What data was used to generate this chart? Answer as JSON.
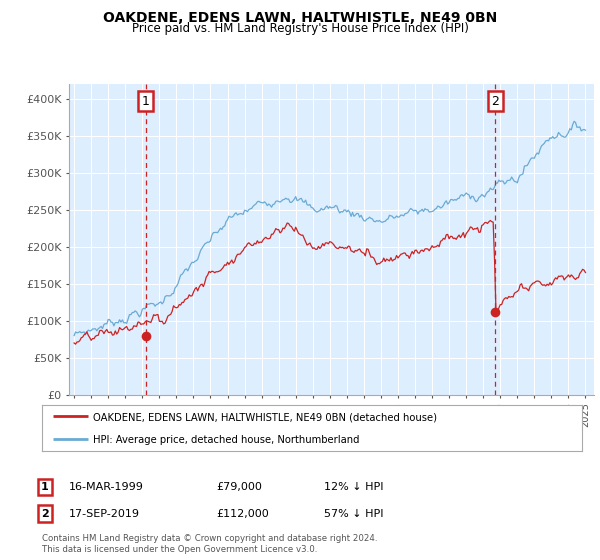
{
  "title": "OAKDENE, EDENS LAWN, HALTWHISTLE, NE49 0BN",
  "subtitle": "Price paid vs. HM Land Registry's House Price Index (HPI)",
  "ylim": [
    0,
    420000
  ],
  "yticks": [
    0,
    50000,
    100000,
    150000,
    200000,
    250000,
    300000,
    350000,
    400000
  ],
  "ytick_labels": [
    "£0",
    "£50K",
    "£100K",
    "£150K",
    "£200K",
    "£250K",
    "£300K",
    "£350K",
    "£400K"
  ],
  "hpi_color": "#6aaad4",
  "price_color": "#cc2222",
  "marker1_date": 1999.21,
  "marker1_price": 79000,
  "marker2_date": 2019.71,
  "marker2_price": 112000,
  "legend_line1": "OAKDENE, EDENS LAWN, HALTWHISTLE, NE49 0BN (detached house)",
  "legend_line2": "HPI: Average price, detached house, Northumberland",
  "footer1": "Contains HM Land Registry data © Crown copyright and database right 2024.",
  "footer2": "This data is licensed under the Open Government Licence v3.0.",
  "table_row1": [
    "1",
    "16-MAR-1999",
    "£79,000",
    "12% ↓ HPI"
  ],
  "table_row2": [
    "2",
    "17-SEP-2019",
    "£112,000",
    "57% ↓ HPI"
  ],
  "background_color": "#ffffff",
  "plot_bg_color": "#ddeeff",
  "grid_color": "#ffffff"
}
